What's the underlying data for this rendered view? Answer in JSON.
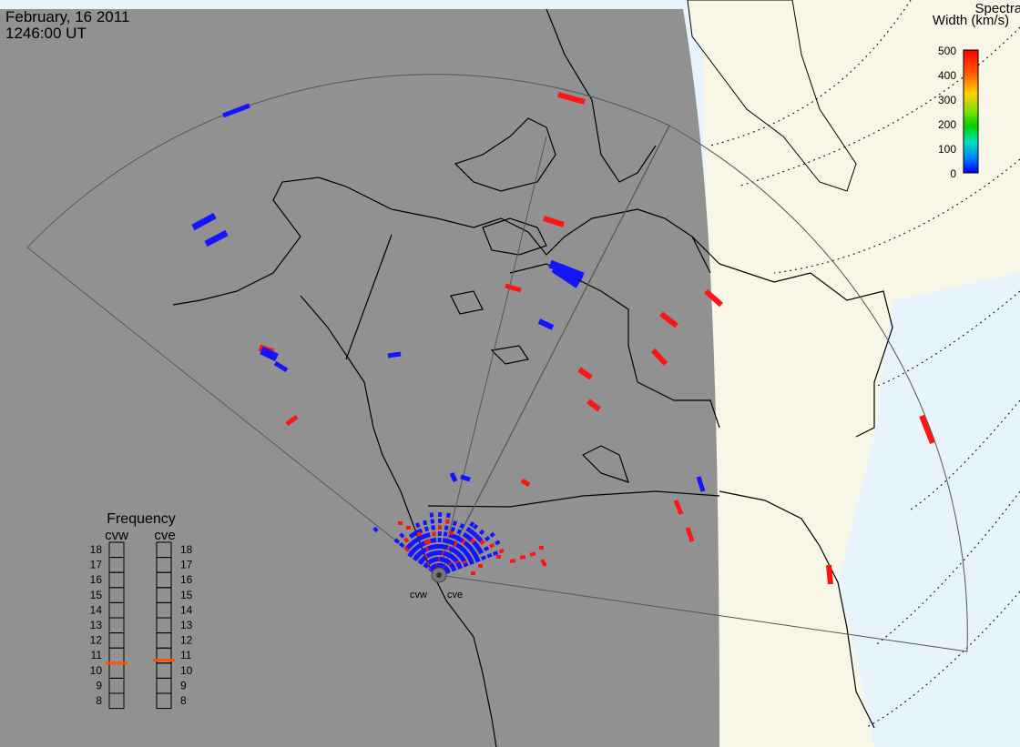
{
  "header": {
    "date": "February, 16 2011",
    "time": "1246:00 UT"
  },
  "colorbar": {
    "title_line1": "Spectral",
    "title_line2": "Width (km/s)",
    "ticks": [
      "500",
      "400",
      "300",
      "200",
      "100",
      "0"
    ],
    "min": 0,
    "max": 500
  },
  "radars": {
    "west": "cvw",
    "east": "cve"
  },
  "frequency_panel": {
    "title": "Frequency",
    "col1": "cvw",
    "col2": "cve",
    "scale": [
      "18",
      "17",
      "16",
      "15",
      "14",
      "13",
      "12",
      "11",
      "10",
      "9",
      "8"
    ],
    "cvw_value": 10.5,
    "cve_value": 10.7
  },
  "colors": {
    "night": "#919191",
    "day_land": "#f8f6e6",
    "day_water": "#e8f4fc",
    "low_width": "#1414ff",
    "high_width": "#ff1414",
    "indicator": "#ff5000"
  }
}
